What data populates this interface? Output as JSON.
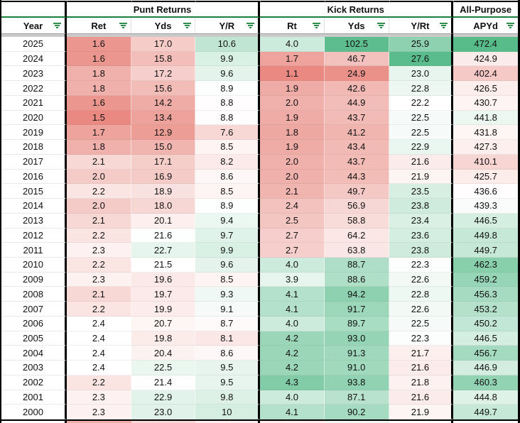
{
  "table": {
    "groups": [
      {
        "label": "",
        "span": 1
      },
      {
        "label": "Punt Returns",
        "span": 3
      },
      {
        "label": "Kick Returns",
        "span": 3
      },
      {
        "label": "All-Purpose",
        "span": 1
      }
    ],
    "columns": [
      {
        "key": "year",
        "label": "Year"
      },
      {
        "key": "pr-ret",
        "label": "Ret"
      },
      {
        "key": "pr-yds",
        "label": "Yds"
      },
      {
        "key": "pr-yr",
        "label": "Y/R"
      },
      {
        "key": "kr-rt",
        "label": "Rt"
      },
      {
        "key": "kr-yds",
        "label": "Yds"
      },
      {
        "key": "kr-yrt",
        "label": "Y/Rt"
      },
      {
        "key": "apyd",
        "label": "APYd"
      }
    ],
    "rows": [
      {
        "year": "2025",
        "cells": [
          "1.6",
          "17.0",
          "10.6",
          "4.0",
          "102.5",
          "25.9",
          "472.4"
        ]
      },
      {
        "year": "2024",
        "cells": [
          "1.6",
          "15.8",
          "9.9",
          "1.7",
          "46.7",
          "27.6",
          "424.9"
        ]
      },
      {
        "year": "2023",
        "cells": [
          "1.8",
          "17.2",
          "9.6",
          "1.1",
          "24.9",
          "23.0",
          "402.4"
        ]
      },
      {
        "year": "2022",
        "cells": [
          "1.8",
          "15.6",
          "8.9",
          "1.9",
          "42.6",
          "22.8",
          "426.5"
        ]
      },
      {
        "year": "2021",
        "cells": [
          "1.6",
          "14.2",
          "8.8",
          "2.0",
          "44.9",
          "22.2",
          "430.7"
        ]
      },
      {
        "year": "2020",
        "cells": [
          "1.5",
          "13.4",
          "8.8",
          "1.9",
          "43.7",
          "22.5",
          "441.8"
        ]
      },
      {
        "year": "2019",
        "cells": [
          "1.7",
          "12.9",
          "7.6",
          "1.8",
          "41.2",
          "22.5",
          "431.8"
        ]
      },
      {
        "year": "2018",
        "cells": [
          "1.8",
          "15.0",
          "8.5",
          "1.9",
          "43.4",
          "22.9",
          "427.3"
        ]
      },
      {
        "year": "2017",
        "cells": [
          "2.1",
          "17.1",
          "8.2",
          "2.0",
          "43.7",
          "21.6",
          "410.1"
        ]
      },
      {
        "year": "2016",
        "cells": [
          "2.0",
          "16.9",
          "8.6",
          "2.0",
          "44.3",
          "21.9",
          "425.7"
        ]
      },
      {
        "year": "2015",
        "cells": [
          "2.2",
          "18.9",
          "8.5",
          "2.1",
          "49.7",
          "23.5",
          "436.6"
        ]
      },
      {
        "year": "2014",
        "cells": [
          "2.0",
          "18.0",
          "8.9",
          "2.4",
          "56.9",
          "23.8",
          "439.3"
        ]
      },
      {
        "year": "2013",
        "cells": [
          "2.1",
          "20.1",
          "9.4",
          "2.5",
          "58.8",
          "23.4",
          "446.5"
        ]
      },
      {
        "year": "2012",
        "cells": [
          "2.2",
          "21.6",
          "9.7",
          "2.7",
          "64.2",
          "23.6",
          "449.8"
        ]
      },
      {
        "year": "2011",
        "cells": [
          "2.3",
          "22.7",
          "9.9",
          "2.7",
          "63.8",
          "23.8",
          "449.7"
        ]
      },
      {
        "year": "2010",
        "cells": [
          "2.2",
          "21.5",
          "9.6",
          "4.0",
          "88.7",
          "22.3",
          "462.3"
        ]
      },
      {
        "year": "2009",
        "cells": [
          "2.3",
          "19.6",
          "8.5",
          "3.9",
          "88.6",
          "22.6",
          "459.2"
        ]
      },
      {
        "year": "2008",
        "cells": [
          "2.1",
          "19.7",
          "9.3",
          "4.1",
          "94.2",
          "22.8",
          "456.3"
        ]
      },
      {
        "year": "2007",
        "cells": [
          "2.2",
          "19.9",
          "9.1",
          "4.1",
          "91.7",
          "22.6",
          "453.2"
        ]
      },
      {
        "year": "2006",
        "cells": [
          "2.4",
          "20.7",
          "8.7",
          "4.0",
          "89.7",
          "22.5",
          "450.2"
        ]
      },
      {
        "year": "2005",
        "cells": [
          "2.4",
          "19.8",
          "8.1",
          "4.2",
          "93.0",
          "22.3",
          "446.5"
        ]
      },
      {
        "year": "2004",
        "cells": [
          "2.4",
          "20.4",
          "8.6",
          "4.2",
          "91.3",
          "21.7",
          "456.7"
        ]
      },
      {
        "year": "2003",
        "cells": [
          "2.4",
          "22.5",
          "9.5",
          "4.2",
          "91.0",
          "21.6",
          "446.9"
        ]
      },
      {
        "year": "2002",
        "cells": [
          "2.2",
          "21.4",
          "9.5",
          "4.3",
          "93.8",
          "21.8",
          "460.3"
        ]
      },
      {
        "year": "2001",
        "cells": [
          "2.3",
          "22.9",
          "9.8",
          "4.0",
          "87.1",
          "21.6",
          "444.8"
        ]
      },
      {
        "year": "2000",
        "cells": [
          "2.3",
          "23.0",
          "10",
          "4.1",
          "90.2",
          "21.9",
          "449.7"
        ]
      }
    ]
  },
  "scales": [
    {
      "red": 1.4,
      "white": 2.4,
      "green": 99
    },
    {
      "red": 10,
      "white": 21.5,
      "green": 29.5
    },
    {
      "red": 4.7,
      "white": 8.85,
      "green": 13.5
    },
    {
      "red": 0.8,
      "white": 3.8,
      "green": 4.47
    },
    {
      "red": 15,
      "white": 75,
      "green": 103.5
    },
    {
      "red": 18.2,
      "white": 22.2,
      "green": 27.7
    },
    {
      "red": 350,
      "white": 438,
      "green": 472.4
    }
  ],
  "colors": {
    "scale_red": "#e67c73",
    "scale_green": "#57bb8a",
    "scale_white": "#ffffff",
    "filter_accent": "#188038",
    "border_black": "#000000",
    "divider_gray": "#cbcbcb",
    "bottom_sliver": [
      "#ffffff",
      "#f1aca6",
      "#f8d8d5",
      "#fdeeed",
      "#fdeeed",
      "#eef7f2",
      "#ffffff",
      "#ffffff"
    ]
  },
  "icons": {
    "filter": "filter-funnel-lines"
  }
}
